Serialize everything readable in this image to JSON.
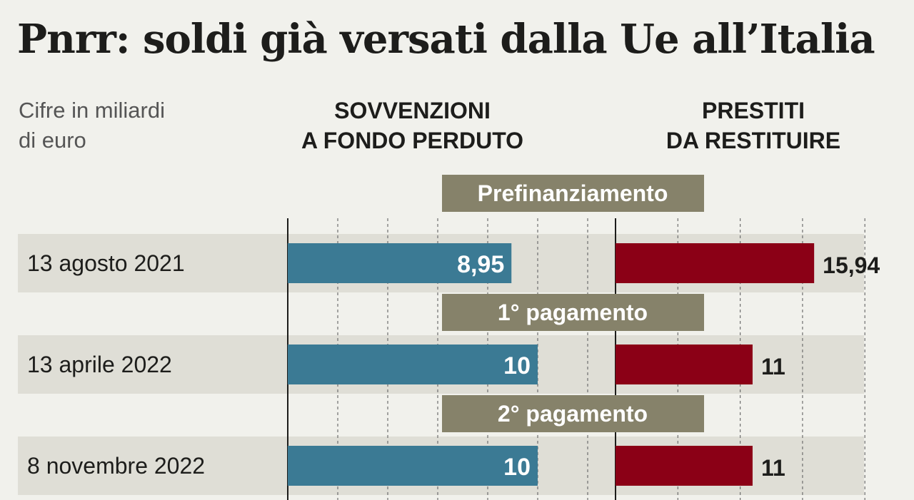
{
  "title": "Pnrr: soldi già versati dalla Ue all’Italia",
  "subtitle": [
    "Cifre in miliardi",
    "di euro"
  ],
  "columns": {
    "left": [
      "SOVVENZIONI",
      "A FONDO PERDUTO"
    ],
    "right": [
      "PRESTITI",
      "DA RESTITUIRE"
    ]
  },
  "colors": {
    "sovvenzioni": "#3b7a94",
    "prestiti": "#8b0016",
    "phase_label_bg": "#86826a",
    "row_band": "#dfded6",
    "background": "#f1f1ec"
  },
  "chart_data": {
    "type": "bar",
    "title": "Pnrr: soldi già versati dalla Ue all’Italia",
    "categories": [
      "13 agosto 2021",
      "13 aprile 2022",
      "8 novembre 2022"
    ],
    "phases": [
      "Prefinanziamento",
      "1° pagamento",
      "2° pagamento"
    ],
    "series": [
      {
        "name": "SOVVENZIONI A FONDO PERDUTO",
        "values": [
          8.95,
          10,
          10
        ],
        "labels": [
          "8,95",
          "10",
          "10"
        ]
      },
      {
        "name": "PRESTITI DA RESTITUIRE",
        "values": [
          15.94,
          11,
          11
        ],
        "labels": [
          "15,94",
          "11",
          "11"
        ]
      }
    ],
    "grid": true,
    "legend": "none"
  }
}
